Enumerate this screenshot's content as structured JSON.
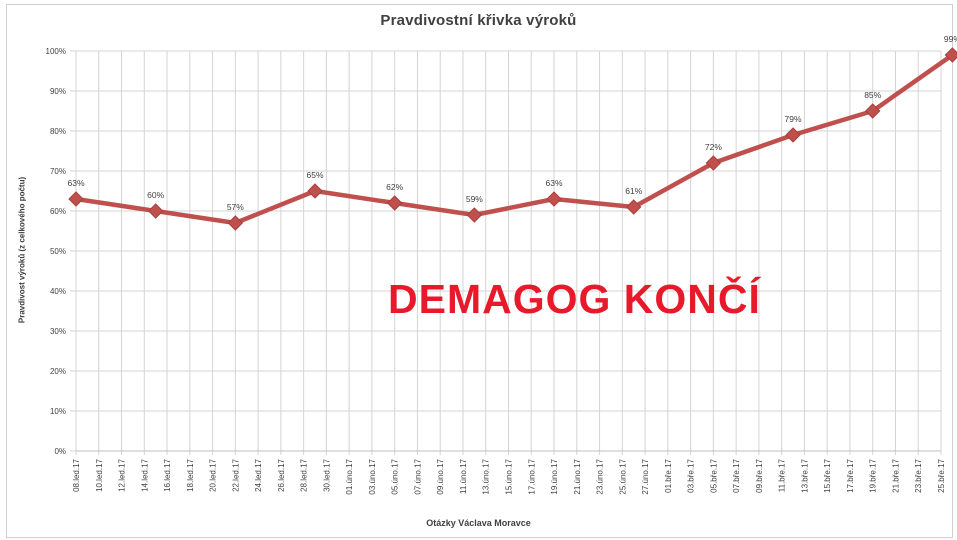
{
  "chart_data": {
    "type": "line",
    "title": "Pravdivostní křivka výroků",
    "xlabel": "Otázky Václava Moravce",
    "ylabel": "Pravdivost výroků (z celkového počtu)",
    "ylim": [
      0,
      100
    ],
    "yticks": [
      "0%",
      "10%",
      "20%",
      "30%",
      "40%",
      "50%",
      "60%",
      "70%",
      "80%",
      "90%",
      "100%"
    ],
    "categories": [
      "08.led.17",
      "10.led.17",
      "12.led.17",
      "14.led.17",
      "16.led.17",
      "18.led.17",
      "20.led.17",
      "22.led.17",
      "24.led.17",
      "26.led.17",
      "28.led.17",
      "30.led.17",
      "01.úno.17",
      "03.úno.17",
      "05.úno.17",
      "07.úno.17",
      "09.úno.17",
      "11.úno.17",
      "13.úno.17",
      "15.úno.17",
      "17.úno.17",
      "19.úno.17",
      "21.úno.17",
      "23.úno.17",
      "25.úno.17",
      "27.úno.17",
      "01.bře.17",
      "03.bře.17",
      "05.bře.17",
      "07.bře.17",
      "09.bře.17",
      "11.bře.17",
      "13.bře.17",
      "15.bře.17",
      "17.bře.17",
      "19.bře.17",
      "21.bře.17",
      "23.bře.17",
      "25.bře.17"
    ],
    "series": [
      {
        "color": "#c0504d",
        "points": [
          {
            "x": "08.led.17",
            "y": 63,
            "label": "63%"
          },
          {
            "x": "15.led.17",
            "y": 60,
            "label": "60%"
          },
          {
            "x": "22.led.17",
            "y": 57,
            "label": "57%"
          },
          {
            "x": "29.led.17",
            "y": 65,
            "label": "65%"
          },
          {
            "x": "05.úno.17",
            "y": 62,
            "label": "62%"
          },
          {
            "x": "12.úno.17",
            "y": 59,
            "label": "59%"
          },
          {
            "x": "19.úno.17",
            "y": 63,
            "label": "63%"
          },
          {
            "x": "26.úno.17",
            "y": 61,
            "label": "61%"
          },
          {
            "x": "05.bře.17",
            "y": 72,
            "label": "72%"
          },
          {
            "x": "12.bře.17",
            "y": 79,
            "label": "79%"
          },
          {
            "x": "19.bře.17",
            "y": 85,
            "label": "85%"
          },
          {
            "x": "26.bře.17",
            "y": 99,
            "label": "99%"
          }
        ]
      }
    ],
    "grid": true,
    "legend": "none"
  },
  "overlay": {
    "text": "DEMAGOG KONČÍ",
    "color": "#e8192a"
  }
}
